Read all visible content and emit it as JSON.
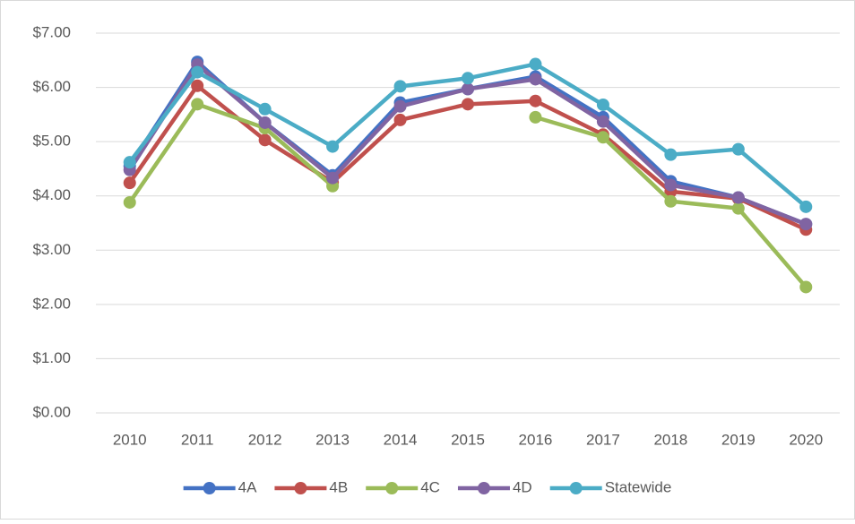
{
  "chart_data": {
    "type": "line",
    "categories": [
      "2010",
      "2011",
      "2012",
      "2013",
      "2014",
      "2015",
      "2016",
      "2017",
      "2018",
      "2019",
      "2020"
    ],
    "series": [
      {
        "name": "4A",
        "color": "#4472c4",
        "values": [
          4.55,
          6.47,
          5.35,
          4.38,
          5.72,
          5.97,
          6.2,
          5.45,
          4.27,
          3.97,
          3.48
        ]
      },
      {
        "name": "4B",
        "color": "#c0504d",
        "values": [
          4.24,
          6.03,
          5.03,
          4.25,
          5.4,
          5.69,
          5.75,
          5.13,
          4.08,
          3.95,
          3.38
        ]
      },
      {
        "name": "4C",
        "color": "#9bbb59",
        "values": [
          3.88,
          5.69,
          5.25,
          4.18,
          null,
          null,
          5.45,
          5.08,
          3.9,
          3.77,
          2.32
        ]
      },
      {
        "name": "4D",
        "color": "#8064a2",
        "values": [
          4.48,
          6.42,
          5.35,
          4.33,
          5.65,
          5.97,
          6.15,
          5.37,
          4.2,
          3.97,
          3.48
        ]
      },
      {
        "name": "Statewide",
        "color": "#4bacc6",
        "values": [
          4.62,
          6.28,
          5.6,
          4.91,
          6.02,
          6.17,
          6.43,
          5.68,
          4.76,
          4.86,
          3.8
        ]
      }
    ],
    "ylim": [
      0,
      7
    ],
    "yticks": [
      {
        "value": 0,
        "label": "$0.00"
      },
      {
        "value": 1,
        "label": "$1.00"
      },
      {
        "value": 2,
        "label": "$2.00"
      },
      {
        "value": 3,
        "label": "$3.00"
      },
      {
        "value": 4,
        "label": "$4.00"
      },
      {
        "value": 5,
        "label": "$5.00"
      },
      {
        "value": 6,
        "label": "$6.00"
      },
      {
        "value": 7,
        "label": "$7.00"
      }
    ],
    "grid": true,
    "legend": "bottom"
  }
}
